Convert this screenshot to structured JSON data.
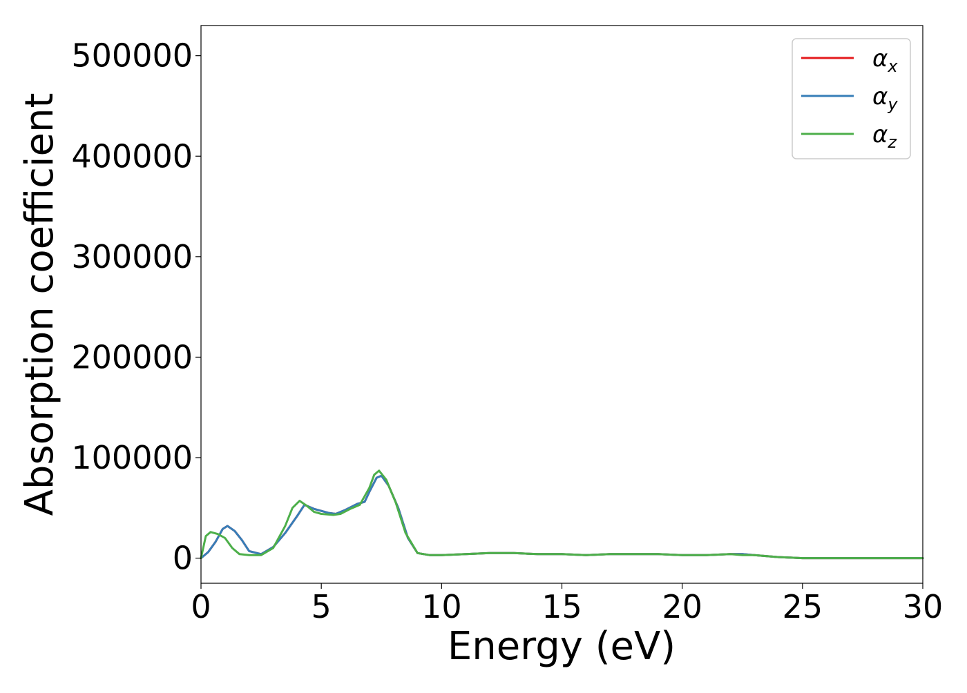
{
  "chart_data": {
    "type": "line",
    "title": "",
    "xlabel": "Energy (eV)",
    "ylabel": "Absorption coefficient",
    "xlim": [
      0,
      30
    ],
    "ylim": [
      -25000,
      530000
    ],
    "xticks": [
      0,
      5,
      10,
      15,
      20,
      25,
      30
    ],
    "yticks": [
      0,
      100000,
      200000,
      300000,
      400000,
      500000
    ],
    "grid": false,
    "legend_position": "top-right",
    "series": [
      {
        "name": "α",
        "subscript": "x",
        "color": "#e41a1c",
        "x": [
          0,
          0.3,
          0.6,
          0.9,
          1.1,
          1.4,
          1.7,
          2.0,
          2.5,
          3.0,
          3.5,
          4.0,
          4.3,
          4.7,
          5.0,
          5.3,
          5.6,
          6.0,
          6.5,
          6.8,
          7.0,
          7.3,
          7.5,
          7.8,
          8.2,
          8.6,
          9.0,
          9.5,
          10,
          11,
          12,
          13,
          14,
          15,
          16,
          17,
          18,
          19,
          20,
          21,
          22,
          22.5,
          23,
          24,
          25,
          26,
          28,
          30
        ],
        "values": [
          0,
          6000,
          16000,
          29000,
          32000,
          27000,
          18000,
          7000,
          4000,
          11000,
          25000,
          42000,
          53000,
          49000,
          47000,
          45000,
          44000,
          48000,
          54000,
          56000,
          66000,
          80000,
          82000,
          72000,
          50000,
          20000,
          5000,
          3000,
          3000,
          4000,
          5000,
          5000,
          4000,
          4000,
          3000,
          4000,
          4000,
          4000,
          3000,
          3000,
          4000,
          4000,
          3000,
          1000,
          0,
          0,
          0,
          0
        ]
      },
      {
        "name": "α",
        "subscript": "y",
        "color": "#377eb8",
        "x": [
          0,
          0.3,
          0.6,
          0.9,
          1.1,
          1.4,
          1.7,
          2.0,
          2.5,
          3.0,
          3.5,
          4.0,
          4.3,
          4.7,
          5.0,
          5.3,
          5.6,
          6.0,
          6.5,
          6.8,
          7.0,
          7.3,
          7.5,
          7.8,
          8.2,
          8.6,
          9.0,
          9.5,
          10,
          11,
          12,
          13,
          14,
          15,
          16,
          17,
          18,
          19,
          20,
          21,
          22,
          22.5,
          23,
          24,
          25,
          26,
          28,
          30
        ],
        "values": [
          0,
          6000,
          16000,
          29000,
          32000,
          27000,
          18000,
          7000,
          4000,
          11000,
          25000,
          42000,
          53000,
          49000,
          47000,
          45000,
          44000,
          48000,
          54000,
          56000,
          66000,
          80000,
          82000,
          72000,
          50000,
          20000,
          5000,
          3000,
          3000,
          4000,
          5000,
          5000,
          4000,
          4000,
          3000,
          4000,
          4000,
          4000,
          3000,
          3000,
          4000,
          4000,
          3000,
          1000,
          0,
          0,
          0,
          0
        ]
      },
      {
        "name": "α",
        "subscript": "z",
        "color": "#4daf4a",
        "x": [
          0,
          0.2,
          0.4,
          0.7,
          1.0,
          1.3,
          1.6,
          2.0,
          2.5,
          3.0,
          3.5,
          3.8,
          4.1,
          4.4,
          4.7,
          5.0,
          5.5,
          5.8,
          6.2,
          6.6,
          7.0,
          7.2,
          7.4,
          7.7,
          8.1,
          8.5,
          9.0,
          9.5,
          10,
          11,
          12,
          13,
          14,
          15,
          16,
          17,
          18,
          19,
          20,
          21,
          22,
          22.5,
          23,
          24,
          25,
          26,
          28,
          30
        ],
        "values": [
          0,
          22000,
          26000,
          24000,
          20000,
          10000,
          4000,
          3000,
          3000,
          10000,
          32000,
          50000,
          57000,
          52000,
          46000,
          44000,
          43000,
          44000,
          49000,
          53000,
          70000,
          83000,
          87000,
          78000,
          55000,
          25000,
          5000,
          3000,
          3000,
          4000,
          5000,
          5000,
          4000,
          4000,
          3000,
          4000,
          4000,
          4000,
          3000,
          3000,
          4000,
          3000,
          3000,
          1000,
          0,
          0,
          0,
          0
        ]
      }
    ]
  }
}
